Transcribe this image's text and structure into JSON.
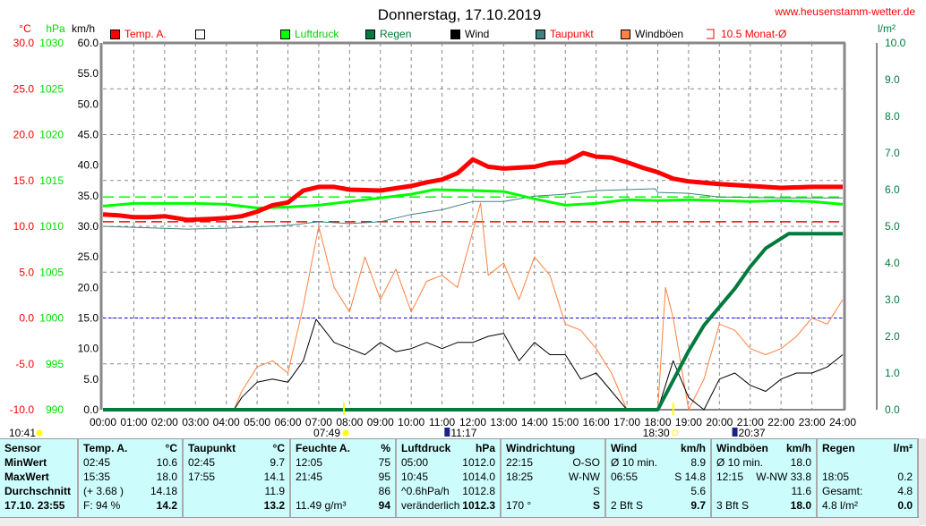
{
  "header": {
    "title": "Donnerstag, 17.10.2019",
    "website": "www.heusenstamm-wetter.de"
  },
  "units": {
    "temp": "°C",
    "pressure": "hPa",
    "wind": "km/h",
    "rain": "l/m²"
  },
  "legend": [
    {
      "label": "Temp. A.",
      "color": "#ff0000",
      "text_color": "#ff0000"
    },
    {
      "label": "",
      "color": "#ffffff",
      "text_color": "#000000"
    },
    {
      "label": "Luftdruck",
      "color": "#00ff00",
      "text_color": "#00cc00"
    },
    {
      "label": "Regen",
      "color": "#007a3d",
      "text_color": "#007a3d"
    },
    {
      "label": "Wind",
      "color": "#000000",
      "text_color": "#000000"
    },
    {
      "label": "Taupunkt",
      "color": "#408080",
      "text_color": "#ff0000"
    },
    {
      "label": "Windböen",
      "color": "#ff8040",
      "text_color": "#000000"
    },
    {
      "label": "10.5 Monat-Ø",
      "color": "#ff0000",
      "text_color": "#ff0000"
    }
  ],
  "astro": {
    "moonset": "10:41",
    "sunrise": "07:49",
    "moonrise_a": "11:17",
    "sunset": "18:30",
    "moonrise_b": "20:37"
  },
  "chart_data": {
    "type": "line",
    "x_ticks": [
      "00:00",
      "01:00",
      "02:00",
      "03:00",
      "04:00",
      "05:00",
      "06:00",
      "07:00",
      "08:00",
      "09:00",
      "10:00",
      "11:00",
      "12:00",
      "13:00",
      "14:00",
      "15:00",
      "16:00",
      "17:00",
      "18:00",
      "19:00",
      "20:00",
      "21:00",
      "22:00",
      "23:00",
      "24:00"
    ],
    "axes": {
      "temp": {
        "label": "°C",
        "range": [
          -10,
          30
        ],
        "ticks": [
          "30.0",
          "25.0",
          "20.0",
          "15.0",
          "10.0",
          "5.0",
          "0.0",
          "-5.0",
          "-10.0"
        ],
        "color": "#ff0000"
      },
      "pressure": {
        "label": "hPa",
        "range": [
          990,
          1030
        ],
        "ticks": [
          "1030",
          "1025",
          "1020",
          "1015",
          "1010",
          "1005",
          "1000",
          "995",
          "990"
        ],
        "color": "#00ff00"
      },
      "wind": {
        "label": "km/h",
        "range": [
          0,
          60
        ],
        "ticks": [
          "60.0",
          "55.0",
          "50.0",
          "45.0",
          "40.0",
          "35.0",
          "30.0",
          "25.0",
          "20.0",
          "15.0",
          "10.0",
          "5.0",
          "0.0"
        ],
        "color": "#000000"
      },
      "rain": {
        "label": "l/m²",
        "range": [
          0,
          10
        ],
        "ticks": [
          "10.0",
          "9.0",
          "8.0",
          "7.0",
          "6.0",
          "5.0",
          "4.0",
          "3.0",
          "2.0",
          "1.0",
          "0.0"
        ],
        "color": "#007a3d"
      }
    },
    "grid": true,
    "reference_lines": {
      "temp_month_avg": 10.5,
      "pressure_ref": 1013.2,
      "freezing": 0
    },
    "series": [
      {
        "name": "Temp. A.",
        "axis": "temp",
        "color": "#ff0000",
        "points": [
          [
            "00:00",
            11.3
          ],
          [
            "00:30",
            11.2
          ],
          [
            "01:00",
            11.0
          ],
          [
            "01:30",
            11.0
          ],
          [
            "02:00",
            11.1
          ],
          [
            "02:45",
            10.7
          ],
          [
            "03:30",
            10.8
          ],
          [
            "04:00",
            10.9
          ],
          [
            "04:30",
            11.1
          ],
          [
            "05:00",
            11.6
          ],
          [
            "05:30",
            12.3
          ],
          [
            "06:00",
            12.6
          ],
          [
            "06:30",
            13.9
          ],
          [
            "07:00",
            14.3
          ],
          [
            "07:30",
            14.3
          ],
          [
            "08:00",
            14.0
          ],
          [
            "09:00",
            13.9
          ],
          [
            "10:00",
            14.4
          ],
          [
            "10:30",
            14.8
          ],
          [
            "11:00",
            15.1
          ],
          [
            "11:30",
            15.8
          ],
          [
            "12:00",
            17.3
          ],
          [
            "12:30",
            16.5
          ],
          [
            "13:00",
            16.3
          ],
          [
            "14:00",
            16.5
          ],
          [
            "14:30",
            16.9
          ],
          [
            "15:00",
            17.0
          ],
          [
            "15:35",
            18.0
          ],
          [
            "16:00",
            17.6
          ],
          [
            "16:30",
            17.5
          ],
          [
            "17:00",
            17.0
          ],
          [
            "17:30",
            16.4
          ],
          [
            "18:00",
            15.9
          ],
          [
            "18:30",
            15.2
          ],
          [
            "19:00",
            14.9
          ],
          [
            "20:00",
            14.6
          ],
          [
            "21:00",
            14.4
          ],
          [
            "22:00",
            14.2
          ],
          [
            "23:00",
            14.3
          ],
          [
            "24:00",
            14.3
          ]
        ]
      },
      {
        "name": "Luftdruck",
        "axis": "pressure",
        "color": "#00ff00",
        "points": [
          [
            "00:00",
            1012.2
          ],
          [
            "01:00",
            1012.5
          ],
          [
            "03:00",
            1012.5
          ],
          [
            "04:00",
            1012.4
          ],
          [
            "05:00",
            1012.0
          ],
          [
            "06:00",
            1012.1
          ],
          [
            "07:00",
            1012.3
          ],
          [
            "08:00",
            1012.7
          ],
          [
            "09:00",
            1013.1
          ],
          [
            "10:00",
            1013.5
          ],
          [
            "10:45",
            1014.0
          ],
          [
            "12:00",
            1013.9
          ],
          [
            "13:00",
            1013.8
          ],
          [
            "14:00",
            1013.0
          ],
          [
            "15:00",
            1012.3
          ],
          [
            "16:00",
            1012.5
          ],
          [
            "17:00",
            1012.9
          ],
          [
            "18:00",
            1012.8
          ],
          [
            "19:00",
            1012.9
          ],
          [
            "20:00",
            1012.8
          ],
          [
            "21:00",
            1012.7
          ],
          [
            "22:00",
            1012.8
          ],
          [
            "23:00",
            1012.7
          ],
          [
            "24:00",
            1012.4
          ]
        ]
      },
      {
        "name": "Taupunkt",
        "axis": "temp",
        "color": "#408080",
        "points": [
          [
            "00:00",
            10.0
          ],
          [
            "02:45",
            9.7
          ],
          [
            "04:00",
            9.8
          ],
          [
            "06:00",
            10.1
          ],
          [
            "07:00",
            10.5
          ],
          [
            "08:00",
            10.3
          ],
          [
            "09:00",
            10.5
          ],
          [
            "10:00",
            11.3
          ],
          [
            "11:00",
            11.8
          ],
          [
            "12:00",
            12.7
          ],
          [
            "13:00",
            12.7
          ],
          [
            "14:00",
            13.3
          ],
          [
            "15:00",
            13.5
          ],
          [
            "16:00",
            13.9
          ],
          [
            "17:55",
            14.1
          ],
          [
            "18:00",
            13.7
          ],
          [
            "19:00",
            13.6
          ],
          [
            "20:00",
            13.2
          ],
          [
            "22:00",
            13.1
          ],
          [
            "24:00",
            13.1
          ]
        ]
      },
      {
        "name": "Regen",
        "axis": "rain",
        "color": "#007a3d",
        "points": [
          [
            "00:00",
            0
          ],
          [
            "18:00",
            0
          ],
          [
            "18:30",
            0.8
          ],
          [
            "19:00",
            1.6
          ],
          [
            "19:30",
            2.3
          ],
          [
            "20:00",
            2.8
          ],
          [
            "20:30",
            3.3
          ],
          [
            "21:00",
            3.9
          ],
          [
            "21:30",
            4.4
          ],
          [
            "22:15",
            4.8
          ],
          [
            "24:00",
            4.8
          ]
        ]
      },
      {
        "name": "Windböen",
        "axis": "wind",
        "color": "#ff8040",
        "points": [
          [
            "04:15",
            0
          ],
          [
            "04:30",
            3
          ],
          [
            "05:00",
            7
          ],
          [
            "05:30",
            8
          ],
          [
            "06:00",
            6
          ],
          [
            "06:30",
            17
          ],
          [
            "07:00",
            30
          ],
          [
            "07:30",
            20
          ],
          [
            "08:00",
            16
          ],
          [
            "08:30",
            25
          ],
          [
            "09:00",
            18
          ],
          [
            "09:30",
            23
          ],
          [
            "10:00",
            16
          ],
          [
            "10:30",
            21
          ],
          [
            "11:00",
            22
          ],
          [
            "11:30",
            20
          ],
          [
            "12:15",
            33.8
          ],
          [
            "12:30",
            22
          ],
          [
            "13:00",
            24
          ],
          [
            "13:30",
            18
          ],
          [
            "14:00",
            25
          ],
          [
            "14:30",
            22
          ],
          [
            "15:00",
            14
          ],
          [
            "15:30",
            13
          ],
          [
            "16:00",
            10
          ],
          [
            "16:30",
            6
          ],
          [
            "17:00",
            0
          ],
          [
            "18:00",
            0
          ],
          [
            "18:15",
            20
          ],
          [
            "18:30",
            15
          ],
          [
            "19:00",
            0
          ],
          [
            "19:30",
            5
          ],
          [
            "20:00",
            14
          ],
          [
            "20:30",
            13
          ],
          [
            "21:00",
            10
          ],
          [
            "21:30",
            9
          ],
          [
            "22:00",
            10
          ],
          [
            "22:30",
            12
          ],
          [
            "23:00",
            15
          ],
          [
            "23:30",
            14
          ],
          [
            "24:00",
            18
          ]
        ]
      },
      {
        "name": "Wind",
        "axis": "wind",
        "color": "#000000",
        "points": [
          [
            "04:15",
            0
          ],
          [
            "04:30",
            2
          ],
          [
            "05:00",
            4.5
          ],
          [
            "05:30",
            5
          ],
          [
            "06:00",
            4.5
          ],
          [
            "06:30",
            8
          ],
          [
            "06:55",
            14.8
          ],
          [
            "07:30",
            11
          ],
          [
            "08:00",
            10
          ],
          [
            "08:30",
            9
          ],
          [
            "09:00",
            11
          ],
          [
            "09:30",
            9.5
          ],
          [
            "10:00",
            10
          ],
          [
            "10:30",
            11
          ],
          [
            "11:00",
            10
          ],
          [
            "11:30",
            11
          ],
          [
            "12:00",
            11
          ],
          [
            "12:30",
            12
          ],
          [
            "13:00",
            12.5
          ],
          [
            "13:30",
            8
          ],
          [
            "14:00",
            11
          ],
          [
            "14:30",
            9
          ],
          [
            "15:00",
            9
          ],
          [
            "15:30",
            5
          ],
          [
            "16:00",
            6
          ],
          [
            "16:30",
            3
          ],
          [
            "17:00",
            0
          ],
          [
            "18:00",
            0
          ],
          [
            "18:30",
            8
          ],
          [
            "19:00",
            2
          ],
          [
            "19:30",
            0
          ],
          [
            "20:00",
            5
          ],
          [
            "20:30",
            6
          ],
          [
            "21:00",
            4
          ],
          [
            "21:30",
            3
          ],
          [
            "22:00",
            5
          ],
          [
            "22:30",
            6
          ],
          [
            "23:00",
            6
          ],
          [
            "23:30",
            7
          ],
          [
            "24:00",
            9
          ]
        ]
      }
    ]
  },
  "table": [
    {
      "head": [
        "Sensor",
        ""
      ],
      "rows": [
        [
          "MinWert",
          ""
        ],
        [
          "MaxWert",
          ""
        ],
        [
          "Durchschnitt",
          ""
        ],
        [
          "17.10. 23:55",
          ""
        ]
      ],
      "labels_bold": true
    },
    {
      "head": [
        "Temp. A.",
        "°C"
      ],
      "rows": [
        [
          "02:45",
          "10.6"
        ],
        [
          "15:35",
          "18.0"
        ],
        [
          "(+ 3.68 )",
          "14.18"
        ],
        [
          "F: 94 %",
          "14.2"
        ]
      ]
    },
    {
      "head": [
        "Taupunkt",
        "°C"
      ],
      "rows": [
        [
          "02:45",
          "9.7"
        ],
        [
          "17:55",
          "14.1"
        ],
        [
          "",
          "11.9"
        ],
        [
          "",
          "13.2"
        ]
      ]
    },
    {
      "head": [
        "Feuchte A.",
        "%"
      ],
      "rows": [
        [
          "12:05",
          "75"
        ],
        [
          "21:45",
          "95"
        ],
        [
          "",
          "86"
        ],
        [
          "11.49 g/m³",
          "94"
        ]
      ]
    },
    {
      "head": [
        "Luftdruck",
        "hPa"
      ],
      "rows": [
        [
          "05:00",
          "1012.0"
        ],
        [
          "10:45",
          "1014.0"
        ],
        [
          "^0.6hPa/h",
          "1012.8"
        ],
        [
          "veränderlich",
          "1012.3"
        ]
      ]
    },
    {
      "head": [
        "Windrichtung",
        ""
      ],
      "rows": [
        [
          "22:15",
          "O-SO"
        ],
        [
          "18:25",
          "W-NW"
        ],
        [
          "",
          "S"
        ],
        [
          "170 °",
          "S"
        ]
      ]
    },
    {
      "head": [
        "Wind",
        "km/h"
      ],
      "rows": [
        [
          "Ø 10 min.",
          "8.9"
        ],
        [
          "06:55",
          "S 14.8"
        ],
        [
          "",
          "5.6"
        ],
        [
          "2 Bft S",
          "9.7"
        ]
      ]
    },
    {
      "head": [
        "Windböen",
        "km/h"
      ],
      "rows": [
        [
          "Ø 10 min.",
          "18.0"
        ],
        [
          "12:15",
          "W-NW 33.8"
        ],
        [
          "",
          "11.6"
        ],
        [
          "3 Bft S",
          "18.0"
        ]
      ]
    },
    {
      "head": [
        "Regen",
        "l/m²"
      ],
      "rows": [
        [
          "",
          ""
        ],
        [
          "18:05",
          "0.2"
        ],
        [
          "Gesamt:",
          "4.8"
        ],
        [
          "4.8 l/m²",
          "0.0"
        ]
      ]
    }
  ]
}
